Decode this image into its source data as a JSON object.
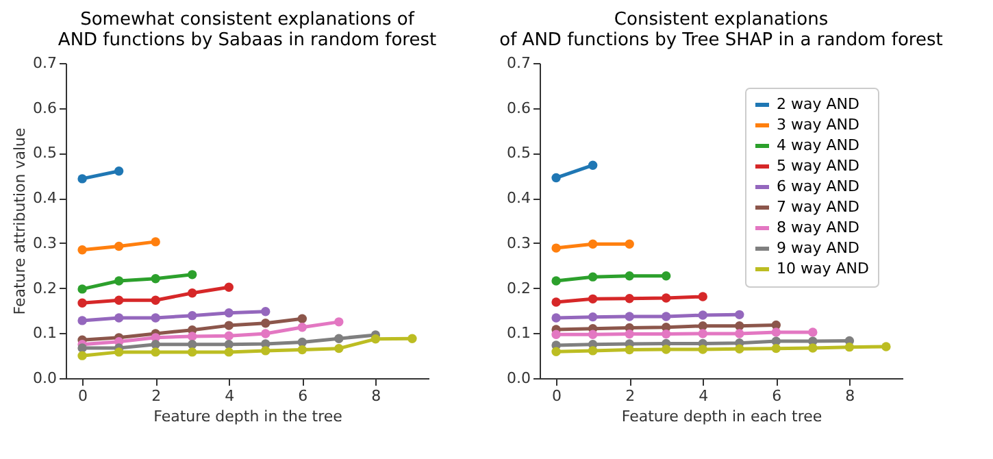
{
  "chart_data": [
    {
      "type": "line",
      "title": "Somewhat consistent explanations of\nAND functions by Sabaas in random forest",
      "xlabel": "Feature depth in the tree",
      "ylabel": "Feature attribution value",
      "xlim": [
        -0.45,
        9.45
      ],
      "xticks": [
        0,
        2,
        4,
        6,
        8
      ],
      "ylim": [
        0,
        0.7
      ],
      "yticks": [
        {
          "value": 0,
          "label": "0.0"
        },
        0.1,
        0.2,
        0.3,
        0.4,
        0.5,
        0.6,
        0.7
      ],
      "grid": false,
      "legend": false,
      "marker": "circle",
      "line_style": "solid",
      "series": [
        {
          "color": "#1f77b4",
          "x": [
            0,
            1
          ],
          "values": [
            0.443,
            0.46
          ]
        },
        {
          "color": "#ff7f0e",
          "x": [
            0,
            1,
            2
          ],
          "values": [
            0.285,
            0.293,
            0.303
          ]
        },
        {
          "color": "#2ca02c",
          "x": [
            0,
            1,
            2,
            3
          ],
          "values": [
            0.198,
            0.216,
            0.221,
            0.23
          ]
        },
        {
          "color": "#d62728",
          "x": [
            0,
            1,
            2,
            3,
            4
          ],
          "values": [
            0.167,
            0.173,
            0.173,
            0.189,
            0.202
          ]
        },
        {
          "color": "#9467bd",
          "x": [
            0,
            1,
            2,
            3,
            4,
            5
          ],
          "values": [
            0.128,
            0.134,
            0.134,
            0.139,
            0.145,
            0.148
          ]
        },
        {
          "color": "#8c564b",
          "x": [
            0,
            1,
            2,
            3,
            4,
            5,
            6
          ],
          "values": [
            0.085,
            0.09,
            0.099,
            0.107,
            0.117,
            0.122,
            0.132
          ]
        },
        {
          "color": "#e377c2",
          "x": [
            0,
            1,
            2,
            3,
            4,
            5,
            6,
            7
          ],
          "values": [
            0.075,
            0.081,
            0.09,
            0.093,
            0.094,
            0.099,
            0.113,
            0.125
          ]
        },
        {
          "color": "#7f7f7f",
          "x": [
            0,
            1,
            2,
            3,
            4,
            5,
            6,
            7,
            8
          ],
          "values": [
            0.067,
            0.067,
            0.075,
            0.075,
            0.075,
            0.076,
            0.08,
            0.088,
            0.096
          ]
        },
        {
          "color": "#bcbd22",
          "x": [
            0,
            1,
            2,
            3,
            4,
            5,
            6,
            7,
            8,
            9
          ],
          "values": [
            0.05,
            0.058,
            0.058,
            0.058,
            0.058,
            0.061,
            0.063,
            0.066,
            0.087,
            0.088
          ]
        }
      ]
    },
    {
      "type": "line",
      "title": "Consistent explanations\nof AND functions by Tree SHAP in a random forest",
      "xlabel": "Feature depth in each tree",
      "xlim": [
        -0.45,
        9.45
      ],
      "xticks": [
        0,
        2,
        4,
        6,
        8
      ],
      "ylim": [
        0,
        0.7
      ],
      "yticks": [
        {
          "value": 0,
          "label": "0.0"
        },
        0.1,
        0.2,
        0.3,
        0.4,
        0.5,
        0.6,
        0.7
      ],
      "grid": false,
      "legend": "top right",
      "marker": "circle",
      "line_style": "solid",
      "series": [
        {
          "name": "2 way AND",
          "color": "#1f77b4",
          "x": [
            0,
            1
          ],
          "values": [
            0.445,
            0.473
          ]
        },
        {
          "name": "3 way AND",
          "color": "#ff7f0e",
          "x": [
            0,
            1,
            2
          ],
          "values": [
            0.289,
            0.298,
            0.298
          ]
        },
        {
          "name": "4 way AND",
          "color": "#2ca02c",
          "x": [
            0,
            1,
            2,
            3
          ],
          "values": [
            0.216,
            0.225,
            0.227,
            0.227
          ]
        },
        {
          "name": "5 way AND",
          "color": "#d62728",
          "x": [
            0,
            1,
            2,
            3,
            4
          ],
          "values": [
            0.169,
            0.176,
            0.177,
            0.178,
            0.181
          ]
        },
        {
          "name": "6 way AND",
          "color": "#9467bd",
          "x": [
            0,
            1,
            2,
            3,
            4,
            5
          ],
          "values": [
            0.134,
            0.136,
            0.137,
            0.137,
            0.14,
            0.141
          ]
        },
        {
          "name": "7 way AND",
          "color": "#8c564b",
          "x": [
            0,
            1,
            2,
            3,
            4,
            5,
            6
          ],
          "values": [
            0.108,
            0.11,
            0.112,
            0.113,
            0.116,
            0.116,
            0.118
          ]
        },
        {
          "name": "8 way AND",
          "color": "#e377c2",
          "x": [
            0,
            1,
            2,
            3,
            4,
            5,
            6,
            7
          ],
          "values": [
            0.097,
            0.097,
            0.098,
            0.098,
            0.099,
            0.099,
            0.102,
            0.102
          ]
        },
        {
          "name": "9 way AND",
          "color": "#7f7f7f",
          "x": [
            0,
            1,
            2,
            3,
            4,
            5,
            6,
            7,
            8
          ],
          "values": [
            0.073,
            0.075,
            0.076,
            0.077,
            0.077,
            0.078,
            0.082,
            0.082,
            0.083
          ]
        },
        {
          "name": "10 way AND",
          "color": "#bcbd22",
          "x": [
            0,
            1,
            2,
            3,
            4,
            5,
            6,
            7,
            8,
            9
          ],
          "values": [
            0.059,
            0.061,
            0.063,
            0.064,
            0.064,
            0.065,
            0.066,
            0.067,
            0.069,
            0.07
          ]
        }
      ]
    }
  ]
}
